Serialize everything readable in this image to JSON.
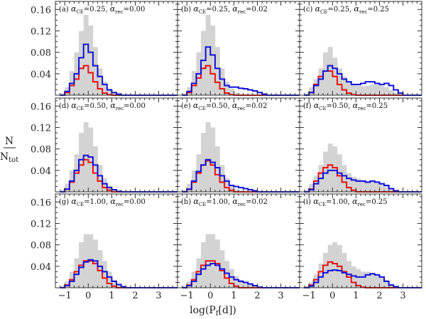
{
  "chart_data": {
    "type": "bar",
    "description_series": [
      "all",
      "red",
      "blue"
    ],
    "xlabel": "log(P",
    "xlabel_sub": "f",
    "xlabel_unit": "[d])",
    "ylabel_num": "N",
    "ylabel_den": "N",
    "ylabel_den_sub": "tot",
    "xlim": [
      -1.4,
      3.8
    ],
    "ylim": [
      0,
      0.175
    ],
    "xticks": [
      -1,
      0,
      1,
      2,
      3
    ],
    "yticks": [
      0.04,
      0.08,
      0.12,
      0.16
    ],
    "ytick_labels": [
      "0.04",
      "0.08",
      "0.12",
      "0.16"
    ],
    "bin_start": -1.2,
    "bin_width": 0.2,
    "colors": {
      "all": "#d3d3d3",
      "red": "#ee1111",
      "blue": "#1111dd",
      "axis": "#333333"
    },
    "panels": [
      {
        "tag": "(a)",
        "alpha_ce": "0.25",
        "alpha_rec": "0.00",
        "all": [
          0.004,
          0.015,
          0.045,
          0.08,
          0.12,
          0.15,
          0.13,
          0.09,
          0.05,
          0.025,
          0.012,
          0.005,
          0.002,
          0,
          0,
          0,
          0,
          0,
          0,
          0,
          0,
          0,
          0,
          0,
          0
        ],
        "red": [
          0,
          0.005,
          0.018,
          0.03,
          0.05,
          0.055,
          0.042,
          0.025,
          0.012,
          0.004,
          0.001,
          0,
          0,
          0,
          0,
          0,
          0,
          0,
          0,
          0,
          0,
          0,
          0,
          0,
          0
        ],
        "blue": [
          0,
          0.007,
          0.022,
          0.04,
          0.07,
          0.095,
          0.08,
          0.055,
          0.035,
          0.02,
          0.01,
          0.005,
          0.002,
          0,
          0,
          0,
          0,
          0,
          0,
          0,
          0,
          0,
          0,
          0,
          0
        ]
      },
      {
        "tag": "(b)",
        "alpha_ce": "0.25",
        "alpha_rec": "0.02",
        "all": [
          0.004,
          0.015,
          0.045,
          0.08,
          0.12,
          0.15,
          0.13,
          0.09,
          0.05,
          0.025,
          0.012,
          0.005,
          0.002,
          0,
          0,
          0,
          0,
          0,
          0,
          0,
          0,
          0,
          0,
          0,
          0
        ],
        "red": [
          0,
          0.005,
          0.018,
          0.032,
          0.05,
          0.055,
          0.04,
          0.024,
          0.012,
          0.004,
          0.001,
          0,
          0,
          0,
          0,
          0,
          0,
          0,
          0,
          0,
          0,
          0,
          0,
          0,
          0
        ],
        "blue": [
          0,
          0.007,
          0.022,
          0.04,
          0.065,
          0.09,
          0.075,
          0.05,
          0.03,
          0.018,
          0.015,
          0.015,
          0.013,
          0.012,
          0.01,
          0.008,
          0.005,
          0.002,
          0,
          0,
          0,
          0,
          0,
          0,
          0
        ]
      },
      {
        "tag": "(c)",
        "alpha_ce": "0.25",
        "alpha_rec": "0.25",
        "all": [
          0.004,
          0.015,
          0.03,
          0.05,
          0.08,
          0.09,
          0.07,
          0.05,
          0.035,
          0.025,
          0.02,
          0.018,
          0.017,
          0.018,
          0.02,
          0.02,
          0.018,
          0.015,
          0.01,
          0.005,
          0.002,
          0,
          0,
          0,
          0
        ],
        "red": [
          0,
          0.005,
          0.02,
          0.035,
          0.045,
          0.045,
          0.035,
          0.02,
          0.01,
          0.004,
          0.001,
          0,
          0,
          0,
          0,
          0,
          0,
          0,
          0,
          0,
          0,
          0,
          0,
          0,
          0
        ],
        "blue": [
          0,
          0.005,
          0.018,
          0.03,
          0.045,
          0.055,
          0.05,
          0.04,
          0.03,
          0.025,
          0.02,
          0.02,
          0.022,
          0.025,
          0.025,
          0.022,
          0.02,
          0.022,
          0.018,
          0.01,
          0.004,
          0,
          0,
          0,
          0
        ]
      },
      {
        "tag": "(d)",
        "alpha_ce": "0.50",
        "alpha_rec": "0.00",
        "all": [
          0.004,
          0.015,
          0.04,
          0.07,
          0.11,
          0.13,
          0.12,
          0.085,
          0.05,
          0.025,
          0.012,
          0.005,
          0.002,
          0,
          0,
          0,
          0,
          0,
          0,
          0,
          0,
          0,
          0,
          0,
          0
        ],
        "red": [
          0,
          0.005,
          0.018,
          0.035,
          0.05,
          0.06,
          0.055,
          0.035,
          0.02,
          0.008,
          0.003,
          0,
          0,
          0,
          0,
          0,
          0,
          0,
          0,
          0,
          0,
          0,
          0,
          0,
          0
        ],
        "blue": [
          0,
          0.005,
          0.02,
          0.04,
          0.06,
          0.068,
          0.065,
          0.05,
          0.03,
          0.015,
          0.008,
          0.004,
          0.001,
          0,
          0,
          0,
          0,
          0,
          0,
          0,
          0,
          0,
          0,
          0,
          0
        ]
      },
      {
        "tag": "(e)",
        "alpha_ce": "0.50",
        "alpha_rec": "0.02",
        "all": [
          0.004,
          0.015,
          0.04,
          0.07,
          0.11,
          0.13,
          0.12,
          0.085,
          0.05,
          0.025,
          0.012,
          0.005,
          0.002,
          0,
          0,
          0,
          0,
          0,
          0,
          0,
          0,
          0,
          0,
          0,
          0
        ],
        "red": [
          0,
          0.005,
          0.018,
          0.035,
          0.05,
          0.058,
          0.05,
          0.032,
          0.018,
          0.008,
          0.003,
          0,
          0,
          0,
          0,
          0,
          0,
          0,
          0,
          0,
          0,
          0,
          0,
          0,
          0
        ],
        "blue": [
          0,
          0.005,
          0.02,
          0.038,
          0.05,
          0.06,
          0.055,
          0.045,
          0.03,
          0.02,
          0.012,
          0.01,
          0.008,
          0.006,
          0.004,
          0.002,
          0,
          0,
          0,
          0,
          0,
          0,
          0,
          0,
          0
        ]
      },
      {
        "tag": "(f)",
        "alpha_ce": "0.50",
        "alpha_rec": "0.25",
        "all": [
          0.004,
          0.015,
          0.03,
          0.05,
          0.075,
          0.09,
          0.085,
          0.07,
          0.05,
          0.035,
          0.028,
          0.025,
          0.022,
          0.02,
          0.02,
          0.018,
          0.015,
          0.01,
          0.005,
          0.002,
          0,
          0,
          0,
          0,
          0
        ],
        "red": [
          0,
          0.005,
          0.02,
          0.035,
          0.045,
          0.05,
          0.045,
          0.03,
          0.018,
          0.008,
          0.003,
          0,
          0,
          0,
          0,
          0,
          0,
          0,
          0,
          0,
          0,
          0,
          0,
          0,
          0
        ],
        "blue": [
          0,
          0.004,
          0.015,
          0.025,
          0.035,
          0.04,
          0.04,
          0.035,
          0.03,
          0.025,
          0.022,
          0.02,
          0.02,
          0.018,
          0.02,
          0.018,
          0.015,
          0.012,
          0.006,
          0.002,
          0,
          0,
          0,
          0,
          0
        ]
      },
      {
        "tag": "(g)",
        "alpha_ce": "1.00",
        "alpha_rec": "0.00",
        "all": [
          0.004,
          0.012,
          0.03,
          0.055,
          0.085,
          0.1,
          0.1,
          0.09,
          0.07,
          0.05,
          0.03,
          0.015,
          0.006,
          0.002,
          0,
          0,
          0,
          0,
          0,
          0,
          0,
          0,
          0,
          0,
          0
        ],
        "red": [
          0,
          0.005,
          0.015,
          0.03,
          0.042,
          0.05,
          0.05,
          0.045,
          0.032,
          0.018,
          0.008,
          0.003,
          0,
          0,
          0,
          0,
          0,
          0,
          0,
          0,
          0,
          0,
          0,
          0,
          0
        ],
        "blue": [
          0,
          0.004,
          0.012,
          0.025,
          0.038,
          0.048,
          0.052,
          0.05,
          0.04,
          0.03,
          0.02,
          0.012,
          0.006,
          0.002,
          0,
          0,
          0,
          0,
          0,
          0,
          0,
          0,
          0,
          0,
          0
        ]
      },
      {
        "tag": "(h)",
        "alpha_ce": "1.00",
        "alpha_rec": "0.02",
        "all": [
          0.004,
          0.012,
          0.03,
          0.055,
          0.085,
          0.1,
          0.1,
          0.09,
          0.07,
          0.05,
          0.035,
          0.022,
          0.015,
          0.01,
          0.006,
          0.003,
          0.001,
          0,
          0,
          0,
          0,
          0,
          0,
          0,
          0
        ],
        "red": [
          0,
          0.005,
          0.015,
          0.03,
          0.042,
          0.05,
          0.05,
          0.045,
          0.032,
          0.018,
          0.008,
          0.003,
          0,
          0,
          0,
          0,
          0,
          0,
          0,
          0,
          0,
          0,
          0,
          0,
          0
        ],
        "blue": [
          0,
          0.004,
          0.012,
          0.025,
          0.035,
          0.042,
          0.045,
          0.042,
          0.035,
          0.027,
          0.02,
          0.015,
          0.012,
          0.01,
          0.007,
          0.004,
          0.001,
          0,
          0,
          0,
          0,
          0,
          0,
          0,
          0
        ]
      },
      {
        "tag": "(i)",
        "alpha_ce": "1.00",
        "alpha_rec": "0.25",
        "all": [
          0.004,
          0.01,
          0.025,
          0.045,
          0.065,
          0.08,
          0.085,
          0.08,
          0.065,
          0.05,
          0.04,
          0.035,
          0.03,
          0.03,
          0.028,
          0.025,
          0.02,
          0.015,
          0.008,
          0.003,
          0,
          0,
          0,
          0,
          0
        ],
        "red": [
          0,
          0.005,
          0.015,
          0.03,
          0.042,
          0.048,
          0.045,
          0.04,
          0.03,
          0.02,
          0.01,
          0.004,
          0.001,
          0,
          0,
          0,
          0,
          0,
          0,
          0,
          0,
          0,
          0,
          0,
          0
        ],
        "blue": [
          0,
          0.003,
          0.01,
          0.02,
          0.028,
          0.032,
          0.033,
          0.032,
          0.028,
          0.025,
          0.022,
          0.02,
          0.02,
          0.024,
          0.026,
          0.024,
          0.02,
          0.012,
          0.005,
          0.002,
          0,
          0,
          0,
          0,
          0
        ]
      }
    ]
  }
}
